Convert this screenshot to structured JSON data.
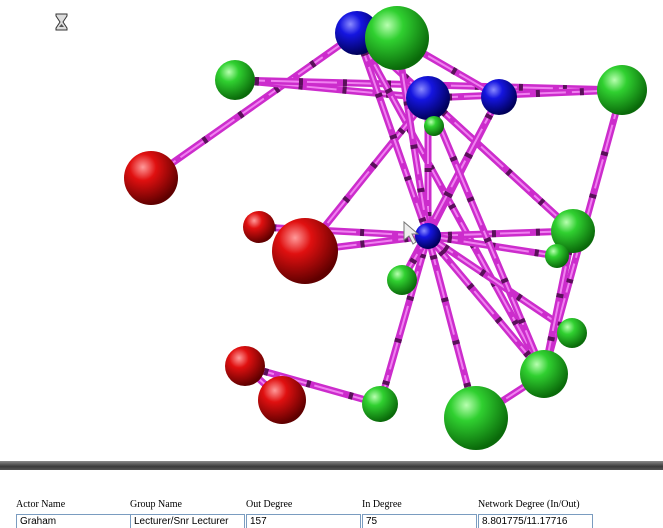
{
  "fields": [
    {
      "label": "Actor Name",
      "value": "Graham"
    },
    {
      "label": "Group Name",
      "value": "Lecturer/Snr Lecturer"
    },
    {
      "label": "Out Degree",
      "value": "157"
    },
    {
      "label": "In Degree",
      "value": "75"
    },
    {
      "label": "Network Degree (In/Out)",
      "value": "8.801775/11.17716"
    }
  ]
}
